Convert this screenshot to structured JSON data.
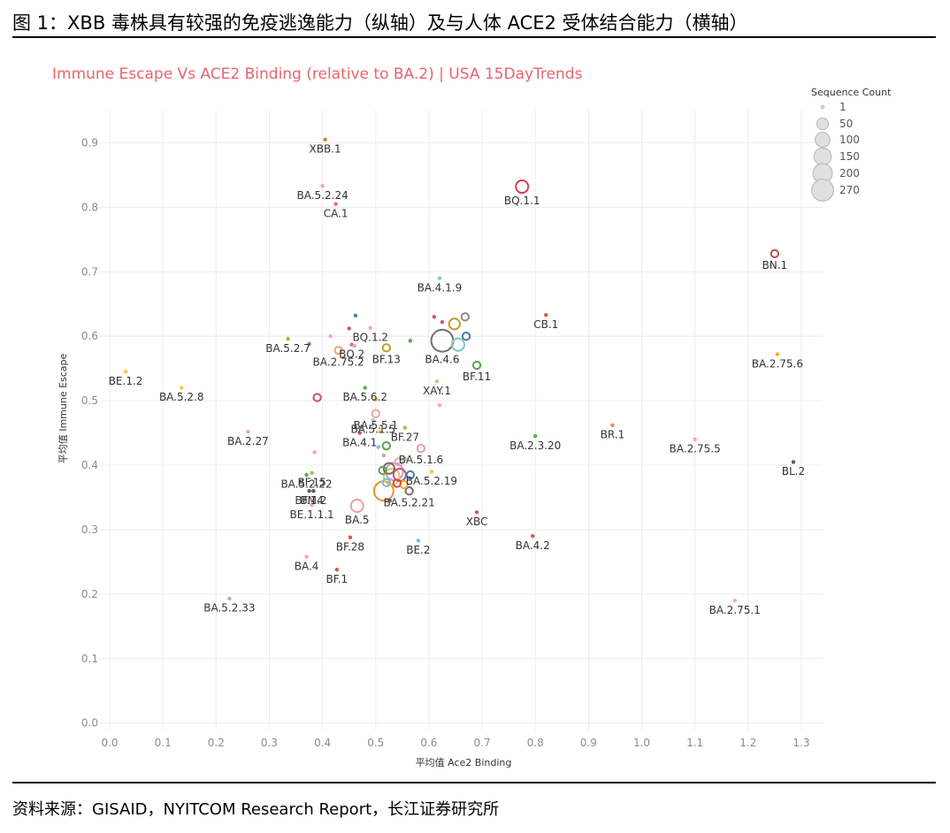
{
  "figure": {
    "title": "图 1：XBB 毒株具有较强的免疫逃逸能力（纵轴）及与人体 ACE2 受体结合能力（横轴）",
    "source": "资料来源：GISAID，NYITCOM Research Report，长江证券研究所"
  },
  "chart_data": {
    "type": "scatter",
    "title": "Immune Escape Vs ACE2 Binding (relative to BA.2) | USA 15DayTrends",
    "xlabel": "平均值 Ace2 Binding",
    "ylabel": "平均值 Immune Escape",
    "xlim": [
      -0.02,
      1.34
    ],
    "ylim": [
      -0.01,
      0.95
    ],
    "xticks": [
      "0.0",
      "0.1",
      "0.2",
      "0.3",
      "0.4",
      "0.5",
      "0.6",
      "0.7",
      "0.8",
      "0.9",
      "1.0",
      "1.1",
      "1.2",
      "1.3"
    ],
    "yticks": [
      "0.0",
      "0.1",
      "0.2",
      "0.3",
      "0.4",
      "0.5",
      "0.6",
      "0.7",
      "0.8",
      "0.9"
    ],
    "grid": true,
    "legend": {
      "title": "Sequence Count",
      "placement": "top-right",
      "entries": [
        "1",
        "50",
        "100",
        "150",
        "200",
        "270"
      ]
    },
    "points": [
      {
        "label": "XBB.1",
        "x": 0.405,
        "y": 0.905,
        "size": 1,
        "color": "#c0862a"
      },
      {
        "label": "BA.5.2.24",
        "x": 0.4,
        "y": 0.833,
        "size": 1,
        "color": "#f4a3a8"
      },
      {
        "label": "CA.1",
        "x": 0.425,
        "y": 0.805,
        "size": 1,
        "color": "#e8646b"
      },
      {
        "label": "BQ.1.1",
        "x": 0.775,
        "y": 0.832,
        "size": 60,
        "color": "#d6404e"
      },
      {
        "label": "BN.1",
        "x": 1.25,
        "y": 0.728,
        "size": 10,
        "color": "#b5534a"
      },
      {
        "label": "BA.4.1.9",
        "x": 0.62,
        "y": 0.69,
        "size": 1,
        "color": "#7fc7c0"
      },
      {
        "label": "CB.1",
        "x": 0.82,
        "y": 0.633,
        "size": 1,
        "color": "#e34a33"
      },
      {
        "label": "BA.5.2.7",
        "x": 0.335,
        "y": 0.596,
        "size": 1,
        "color": "#d39a1f"
      },
      {
        "label": "BQ.1.2",
        "x": 0.49,
        "y": 0.613,
        "size": 1,
        "color": "#f4a3a8"
      },
      {
        "label": "BQ.2",
        "x": 0.455,
        "y": 0.587,
        "size": 1,
        "color": "#e8646b"
      },
      {
        "label": "BA.2.75.2",
        "x": 0.43,
        "y": 0.578,
        "size": 10,
        "color": "#f0a070"
      },
      {
        "label": "BF.13",
        "x": 0.52,
        "y": 0.582,
        "size": 10,
        "color": "#c0a020"
      },
      {
        "label": "BA.4.6",
        "x": 0.625,
        "y": 0.593,
        "size": 270,
        "color": "#7a6a6f"
      },
      {
        "label": "BF.11",
        "x": 0.69,
        "y": 0.555,
        "size": 10,
        "color": "#59a14f"
      },
      {
        "label": "BA.2.75.6",
        "x": 1.255,
        "y": 0.572,
        "size": 1,
        "color": "#f6a623"
      },
      {
        "label": "BE.1.2",
        "x": 0.03,
        "y": 0.545,
        "size": 1,
        "color": "#f6c24a"
      },
      {
        "label": "BA.5.2.8",
        "x": 0.135,
        "y": 0.52,
        "size": 1,
        "color": "#f6c24a"
      },
      {
        "label": "BA.5.6.2",
        "x": 0.48,
        "y": 0.52,
        "size": 1,
        "color": "#59a14f"
      },
      {
        "label": "XAY.1",
        "x": 0.615,
        "y": 0.53,
        "size": 1,
        "color": "#9bd57c"
      },
      {
        "label": "BA.5.1.5",
        "x": 0.495,
        "y": 0.47,
        "size": 1,
        "color": "#aec7e8"
      },
      {
        "label": "BA.5.5.1",
        "x": 0.5,
        "y": 0.48,
        "size": 10,
        "color": "#f4a3a8"
      },
      {
        "label": "BF.27",
        "x": 0.555,
        "y": 0.458,
        "size": 1,
        "color": "#8cc63f"
      },
      {
        "label": "BA.2.27",
        "x": 0.26,
        "y": 0.452,
        "size": 1,
        "color": "#f4a3a8"
      },
      {
        "label": "BA.4.1",
        "x": 0.47,
        "y": 0.45,
        "size": 1,
        "color": "#c94b8a"
      },
      {
        "label": "BA.5.1.6",
        "x": 0.585,
        "y": 0.426,
        "size": 10,
        "color": "#e8a0a0"
      },
      {
        "label": "BA.2.3.20",
        "x": 0.8,
        "y": 0.445,
        "size": 1,
        "color": "#59a14f"
      },
      {
        "label": "BR.1",
        "x": 0.945,
        "y": 0.462,
        "size": 1,
        "color": "#f28e2b"
      },
      {
        "label": "BA.2.75.5",
        "x": 1.1,
        "y": 0.44,
        "size": 1,
        "color": "#f4a3a8"
      },
      {
        "label": "BL.2",
        "x": 1.285,
        "y": 0.405,
        "size": 1,
        "color": "#555555"
      },
      {
        "label": "BA.5.2.22",
        "x": 0.37,
        "y": 0.385,
        "size": 1,
        "color": "#59a14f"
      },
      {
        "label": "BF.15",
        "x": 0.38,
        "y": 0.388,
        "size": 1,
        "color": "#8cc63f"
      },
      {
        "label": "BA.5.2.19",
        "x": 0.605,
        "y": 0.39,
        "size": 1,
        "color": "#f6c24a"
      },
      {
        "label": "BF.14",
        "x": 0.375,
        "y": 0.36,
        "size": 1,
        "color": "#555555"
      },
      {
        "label": "BM.2",
        "x": 0.383,
        "y": 0.36,
        "size": 1,
        "color": "#555555"
      },
      {
        "label": "BA.5.2.21",
        "x": 0.563,
        "y": 0.36,
        "size": 10,
        "color": "#7a6a6f"
      },
      {
        "label": "BE.1.1.1",
        "x": 0.38,
        "y": 0.338,
        "size": 1,
        "color": "#f4a3a8"
      },
      {
        "label": "BA.5",
        "x": 0.465,
        "y": 0.337,
        "size": 60,
        "color": "#e8a0a0"
      },
      {
        "label": "XBC",
        "x": 0.69,
        "y": 0.327,
        "size": 1,
        "color": "#c94b8a"
      },
      {
        "label": "BF.28",
        "x": 0.452,
        "y": 0.288,
        "size": 1,
        "color": "#e34a33"
      },
      {
        "label": "BE.2",
        "x": 0.58,
        "y": 0.283,
        "size": 1,
        "color": "#76b7e5"
      },
      {
        "label": "BA.4.2",
        "x": 0.795,
        "y": 0.29,
        "size": 1,
        "color": "#e34a33"
      },
      {
        "label": "BA.4",
        "x": 0.37,
        "y": 0.258,
        "size": 1,
        "color": "#f4a3a8"
      },
      {
        "label": "BF.1",
        "x": 0.427,
        "y": 0.238,
        "size": 1,
        "color": "#e34a33"
      },
      {
        "label": "BA.5.2.33",
        "x": 0.225,
        "y": 0.193,
        "size": 1,
        "color": "#c9a0a0"
      },
      {
        "label": "BA.2.75.1",
        "x": 1.175,
        "y": 0.19,
        "size": 1,
        "color": "#f4a3a8"
      },
      {
        "label": "",
        "x": 0.515,
        "y": 0.36,
        "size": 200,
        "color": "#f28e2b"
      },
      {
        "label": "",
        "x": 0.535,
        "y": 0.39,
        "size": 150,
        "color": "#b7a8c9"
      },
      {
        "label": "",
        "x": 0.53,
        "y": 0.382,
        "size": 120,
        "color": "#e6c84f"
      },
      {
        "label": "",
        "x": 0.545,
        "y": 0.385,
        "size": 60,
        "color": "#c94b8a"
      },
      {
        "label": "",
        "x": 0.525,
        "y": 0.395,
        "size": 40,
        "color": "#7a6a6f"
      },
      {
        "label": "",
        "x": 0.553,
        "y": 0.37,
        "size": 10,
        "color": "#f6a623"
      },
      {
        "label": "",
        "x": 0.565,
        "y": 0.385,
        "size": 10,
        "color": "#4e79a7"
      },
      {
        "label": "",
        "x": 0.54,
        "y": 0.372,
        "size": 10,
        "color": "#e34a33"
      },
      {
        "label": "",
        "x": 0.513,
        "y": 0.392,
        "size": 10,
        "color": "#59a14f"
      },
      {
        "label": "",
        "x": 0.52,
        "y": 0.373,
        "size": 10,
        "color": "#76b7e5"
      },
      {
        "label": "",
        "x": 0.543,
        "y": 0.405,
        "size": 10,
        "color": "#f4a3a8"
      },
      {
        "label": "",
        "x": 0.527,
        "y": 0.345,
        "size": 1,
        "color": "#7a6a6f"
      },
      {
        "label": "",
        "x": 0.556,
        "y": 0.41,
        "size": 1,
        "color": "#9bd57c"
      },
      {
        "label": "",
        "x": 0.505,
        "y": 0.428,
        "size": 1,
        "color": "#76b7e5"
      },
      {
        "label": "",
        "x": 0.515,
        "y": 0.415,
        "size": 1,
        "color": "#c9a0a0"
      },
      {
        "label": "",
        "x": 0.52,
        "y": 0.43,
        "size": 10,
        "color": "#59a14f"
      },
      {
        "label": "",
        "x": 0.508,
        "y": 0.452,
        "size": 1,
        "color": "#f6c24a"
      },
      {
        "label": "",
        "x": 0.5,
        "y": 0.502,
        "size": 1,
        "color": "#f6a623"
      },
      {
        "label": "",
        "x": 0.62,
        "y": 0.493,
        "size": 1,
        "color": "#f4a3a8"
      },
      {
        "label": "",
        "x": 0.39,
        "y": 0.505,
        "size": 10,
        "color": "#c94b8a"
      },
      {
        "label": "",
        "x": 0.385,
        "y": 0.42,
        "size": 1,
        "color": "#f4a3a8"
      },
      {
        "label": "",
        "x": 0.375,
        "y": 0.588,
        "size": 1,
        "color": "#59a14f"
      },
      {
        "label": "",
        "x": 0.415,
        "y": 0.6,
        "size": 1,
        "color": "#f4a3a8"
      },
      {
        "label": "",
        "x": 0.462,
        "y": 0.632,
        "size": 1,
        "color": "#4e79a7"
      },
      {
        "label": "",
        "x": 0.45,
        "y": 0.612,
        "size": 1,
        "color": "#c94b8a"
      },
      {
        "label": "",
        "x": 0.46,
        "y": 0.585,
        "size": 1,
        "color": "#f4a3a8"
      },
      {
        "label": "",
        "x": 0.565,
        "y": 0.593,
        "size": 1,
        "color": "#59a14f"
      },
      {
        "label": "",
        "x": 0.61,
        "y": 0.63,
        "size": 1,
        "color": "#c94b8a"
      },
      {
        "label": "",
        "x": 0.625,
        "y": 0.622,
        "size": 1,
        "color": "#c94b8a"
      },
      {
        "label": "",
        "x": 0.648,
        "y": 0.619,
        "size": 40,
        "color": "#c0a020"
      },
      {
        "label": "",
        "x": 0.655,
        "y": 0.587,
        "size": 60,
        "color": "#7fc7c0"
      },
      {
        "label": "",
        "x": 0.668,
        "y": 0.63,
        "size": 10,
        "color": "#8c8c8c"
      },
      {
        "label": "",
        "x": 0.67,
        "y": 0.6,
        "size": 10,
        "color": "#4e79a7"
      }
    ]
  }
}
